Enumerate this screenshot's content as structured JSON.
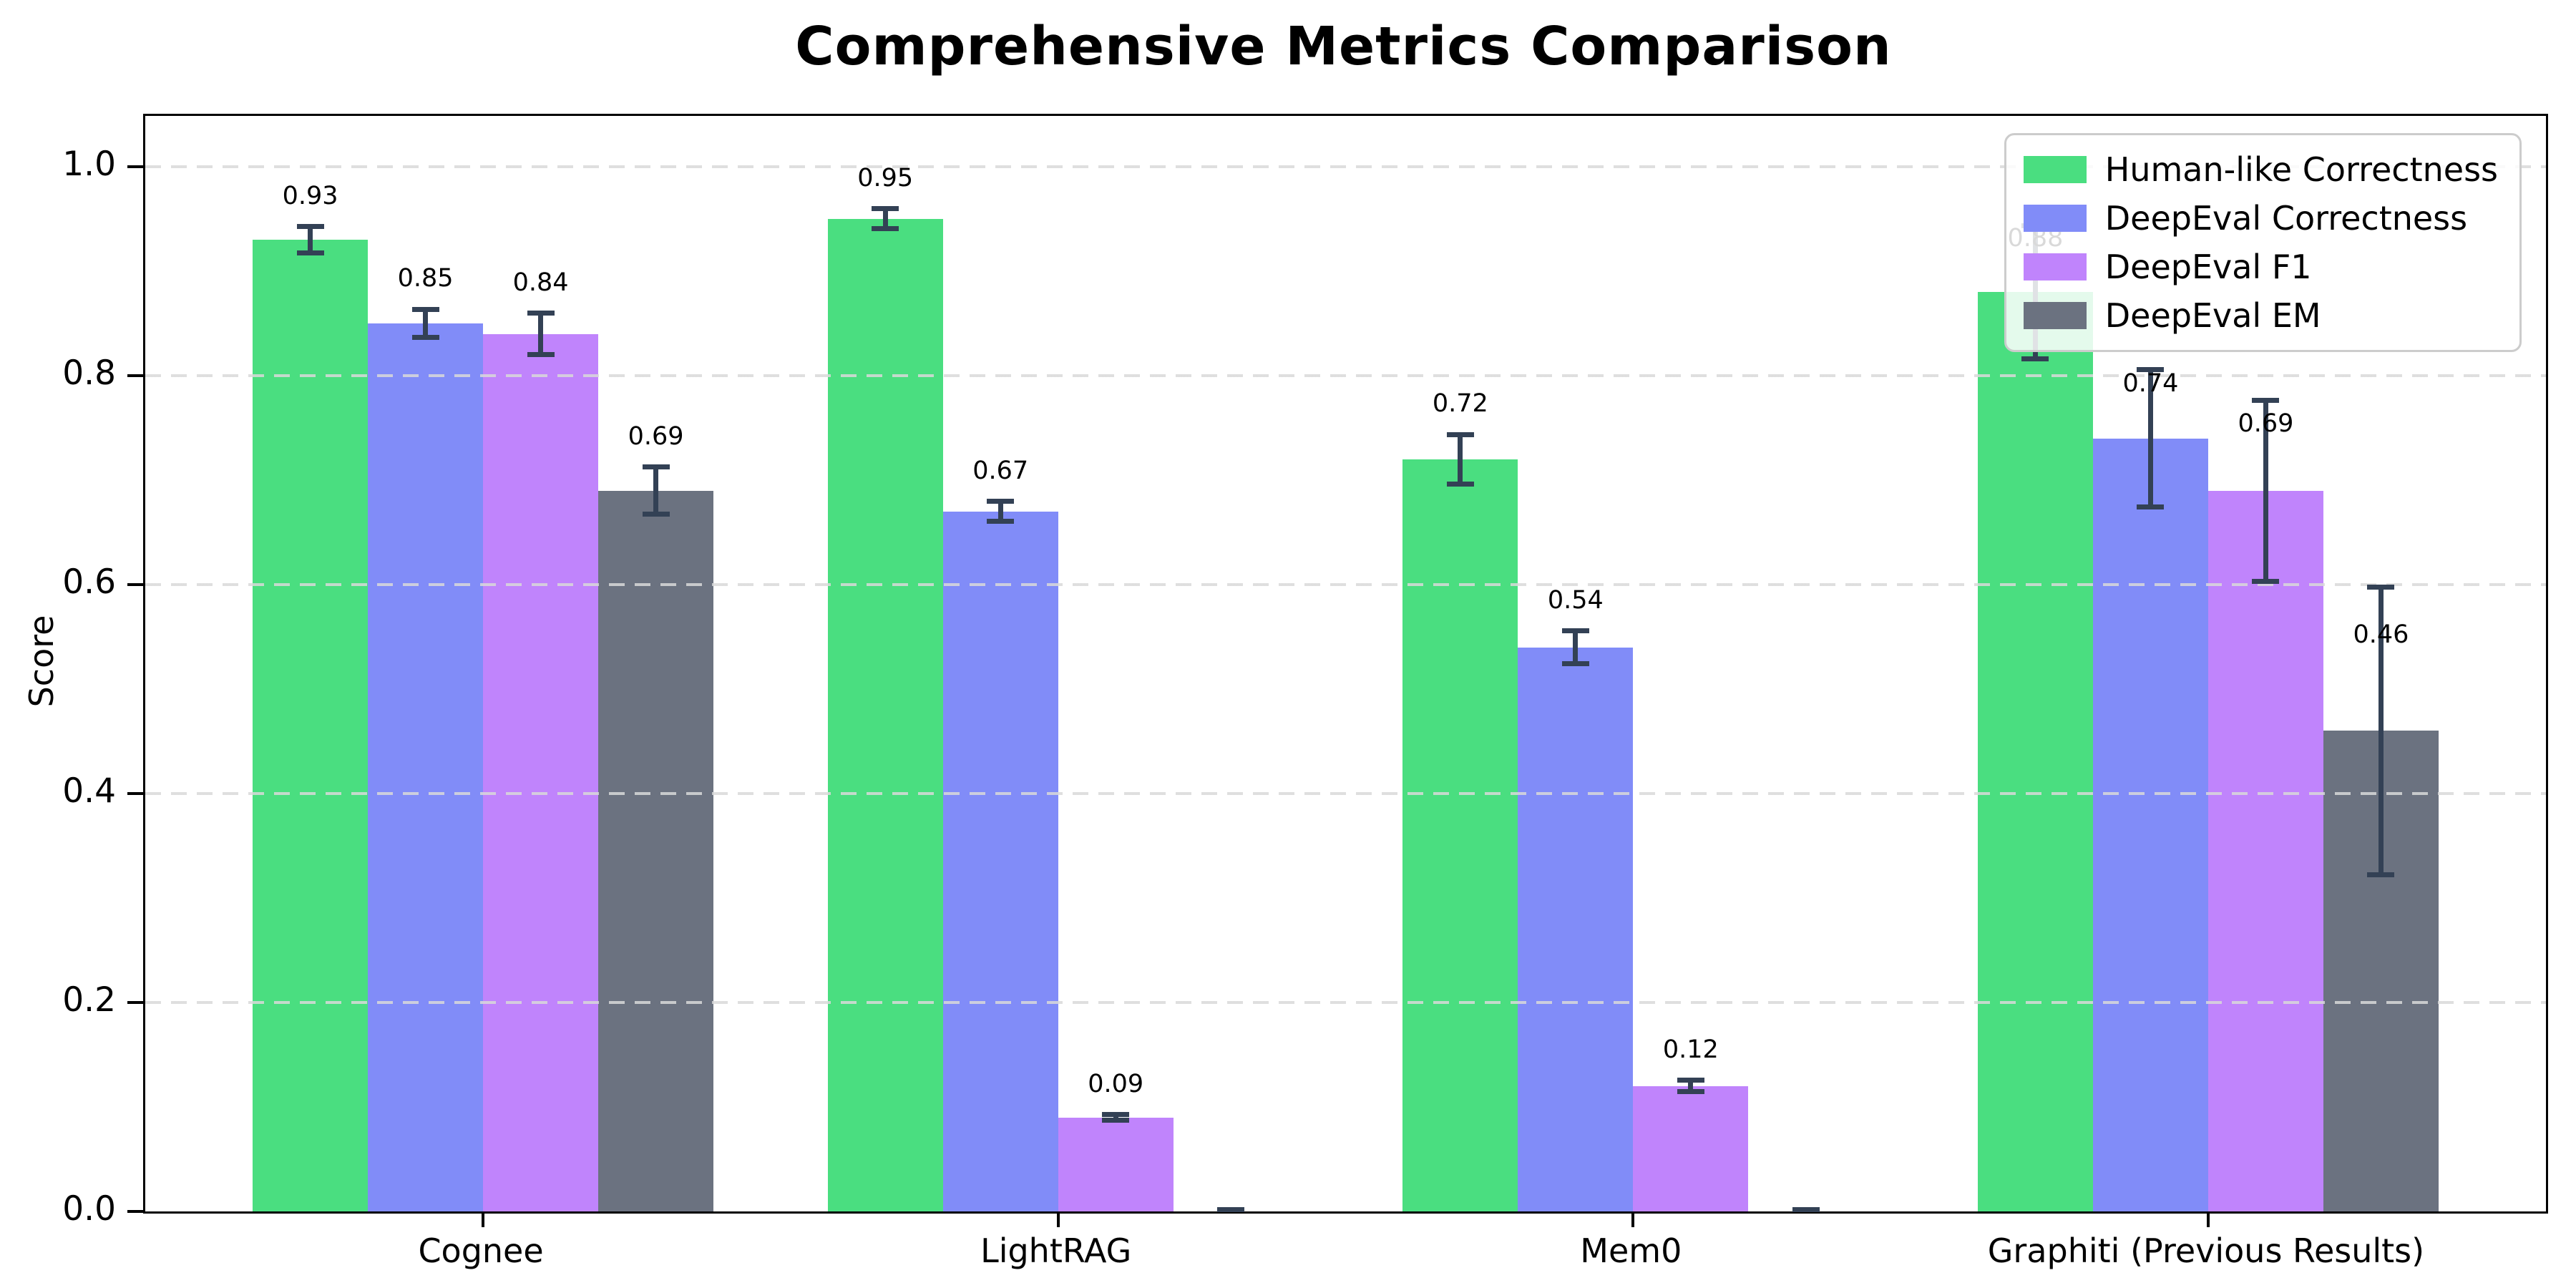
{
  "chart_data": {
    "type": "bar",
    "title": "Comprehensive Metrics Comparison",
    "xlabel": "",
    "ylabel": "Score",
    "categories": [
      "Cognee",
      "LightRAG",
      "Mem0",
      "Graphiti (Previous Results)"
    ],
    "series": [
      {
        "name": "Human-like Correctness",
        "color": "#4ade80",
        "values": [
          0.93,
          0.95,
          0.72,
          0.88
        ],
        "errors": [
          0.015,
          0.012,
          0.026,
          0.066
        ],
        "labels": [
          "0.93",
          "0.95",
          "0.72",
          "0.88"
        ]
      },
      {
        "name": "DeepEval Correctness",
        "color": "#818cf8",
        "values": [
          0.85,
          0.67,
          0.54,
          0.74
        ],
        "errors": [
          0.016,
          0.012,
          0.018,
          0.068
        ],
        "labels": [
          "0.85",
          "0.67",
          "0.54",
          "0.74"
        ]
      },
      {
        "name": "DeepEval F1",
        "color": "#c084fc",
        "values": [
          0.84,
          0.09,
          0.12,
          0.69
        ],
        "errors": [
          0.022,
          0.005,
          0.008,
          0.089
        ],
        "labels": [
          "0.84",
          "0.09",
          "0.12",
          "0.69"
        ]
      },
      {
        "name": "DeepEval EM",
        "color": "#6b7280",
        "values": [
          0.69,
          0.0,
          0.0,
          0.46
        ],
        "errors": [
          0.025,
          0.004,
          0.004,
          0.14
        ],
        "labels": [
          "0.69",
          null,
          null,
          "0.46"
        ]
      }
    ],
    "yticks": [
      {
        "value": 0.0,
        "label": "0.0"
      },
      {
        "value": 0.2,
        "label": "0.2"
      },
      {
        "value": 0.4,
        "label": "0.4"
      },
      {
        "value": 0.6,
        "label": "0.6"
      },
      {
        "value": 0.8,
        "label": "0.8"
      },
      {
        "value": 1.0,
        "label": "1.0"
      }
    ],
    "ylim": [
      0,
      1.0486
    ],
    "grid": "dashed-horizontal",
    "grid_color": "#d9d9d9",
    "error_bar_color": "#334155",
    "axis_color": "#000000",
    "legend_position": "upper right"
  }
}
